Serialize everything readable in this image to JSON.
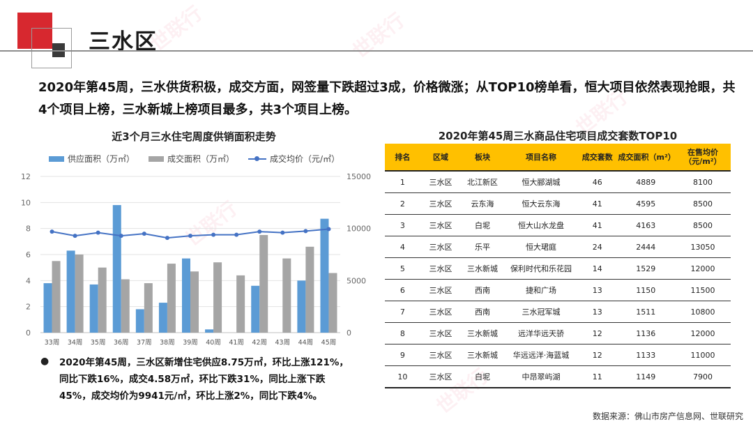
{
  "page": {
    "title": "三水区",
    "summary": "2020年第45周，三水供货积极，成交方面，网签量下跌超过3成，价格微涨；从TOP10榜单看，恒大项目依然表现抢眼，共4个项目上榜，三水新城上榜项目最多，共3个项目上榜。",
    "note": "2020年第45周，三水区新增住宅供应8.75万㎡，环比上涨121%，同比下跌16%，成交4.58万㎡，环比下跌31%，同比上涨下跌45%，成交均价为9941元/㎡，环比上涨2%，同比下跌4%。",
    "source": "数据来源：佛山市房产信息网、世联研究",
    "watermark": "世联行"
  },
  "chart_data": {
    "type": "bar",
    "title": "近3个月三水住宅周度供销面积走势",
    "categories": [
      "33周",
      "34周",
      "35周",
      "36周",
      "37周",
      "38周",
      "39周",
      "40周",
      "41周",
      "42周",
      "43周",
      "44周",
      "45周"
    ],
    "series": [
      {
        "name": "供应面积（万㎡）",
        "kind": "bar",
        "axis": "left",
        "color": "#5b9bd5",
        "values": [
          3.8,
          6.3,
          3.7,
          9.8,
          1.8,
          2.3,
          5.7,
          0.25,
          0,
          3.6,
          0,
          4.0,
          8.75
        ]
      },
      {
        "name": "成交面积（万㎡）",
        "kind": "bar",
        "axis": "left",
        "color": "#a5a5a5",
        "values": [
          5.5,
          6.0,
          5.0,
          4.1,
          3.8,
          5.3,
          4.7,
          5.4,
          4.4,
          7.5,
          5.7,
          6.6,
          4.58
        ]
      },
      {
        "name": "成交均价（元/㎡）",
        "kind": "line",
        "axis": "right",
        "color": "#4472c4",
        "values": [
          9700,
          9300,
          9600,
          9300,
          9500,
          9100,
          9300,
          9400,
          9400,
          9700,
          9600,
          9750,
          9941
        ]
      }
    ],
    "y_left": {
      "min": 0,
      "max": 12,
      "ticks": [
        "0",
        "2",
        "4",
        "6",
        "8",
        "10",
        "12"
      ]
    },
    "y_right": {
      "min": 0,
      "max": 15000,
      "ticks": [
        "0",
        "5000",
        "10000",
        "15000"
      ]
    },
    "grid": true,
    "legend": "top"
  },
  "table": {
    "title": "2020年第45周三水商品住宅项目成交套数TOP10",
    "headers": [
      "排名",
      "区域",
      "板块",
      "项目名称",
      "成交套数",
      "成交面积（m²）",
      "在售均价（元/m²）"
    ],
    "rows": [
      [
        "1",
        "三水区",
        "北江新区",
        "恒大郦湖城",
        "46",
        "4889",
        "8100"
      ],
      [
        "2",
        "三水区",
        "云东海",
        "恒大云东海",
        "41",
        "4595",
        "8500"
      ],
      [
        "3",
        "三水区",
        "白坭",
        "恒大山水龙盘",
        "41",
        "4163",
        "8500"
      ],
      [
        "4",
        "三水区",
        "乐平",
        "恒大珺庭",
        "24",
        "2444",
        "13050"
      ],
      [
        "5",
        "三水区",
        "三水新城",
        "保利时代和乐花园",
        "14",
        "1529",
        "12000"
      ],
      [
        "6",
        "三水区",
        "西南",
        "捷和广场",
        "13",
        "1150",
        "11500"
      ],
      [
        "7",
        "三水区",
        "西南",
        "三水冠军城",
        "13",
        "1511",
        "10800"
      ],
      [
        "8",
        "三水区",
        "三水新城",
        "远洋华远天骄",
        "12",
        "1136",
        "12000"
      ],
      [
        "9",
        "三水区",
        "三水新城",
        "华远远洋·海蓝城",
        "12",
        "1133",
        "11000"
      ],
      [
        "10",
        "三水区",
        "白坭",
        "中昂翠屿湖",
        "11",
        "1149",
        "7900"
      ]
    ]
  }
}
